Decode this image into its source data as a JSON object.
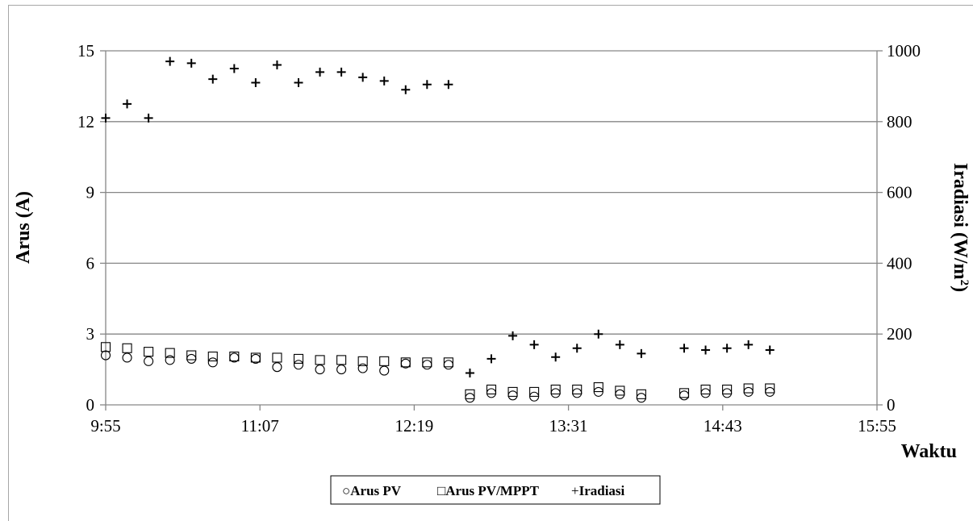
{
  "chart_data": {
    "type": "scatter",
    "x_axis": {
      "label": "Waktu",
      "min_minutes": 595,
      "max_minutes": 955,
      "tick_labels": [
        "9:55",
        "11:07",
        "12:19",
        "13:31",
        "14:43",
        "15:55"
      ]
    },
    "y_axis_left": {
      "label": "Arus (A)",
      "min": 0,
      "max": 15,
      "tick_labels": [
        "0",
        "3",
        "6",
        "9",
        "12",
        "15"
      ]
    },
    "y_axis_right": {
      "label_main": "Iradiasi (W/m",
      "label_sup": "2",
      "label_close": ")",
      "min": 0,
      "max": 1000,
      "tick_labels": [
        "0",
        "200",
        "400",
        "600",
        "800",
        "1000"
      ]
    },
    "grid": "horizontal",
    "legend": {
      "placement": "bottom",
      "entries": [
        {
          "marker": "○",
          "label": "Arus PV"
        },
        {
          "marker": "□",
          "label": "Arus PV/MPPT"
        },
        {
          "marker": "+",
          "label": "Iradiasi"
        }
      ]
    },
    "series": [
      {
        "name": "Arus PV",
        "axis": "left",
        "marker": "circle",
        "points": [
          [
            595,
            2.1
          ],
          [
            605,
            2.0
          ],
          [
            615,
            1.85
          ],
          [
            625,
            1.9
          ],
          [
            635,
            1.95
          ],
          [
            645,
            1.8
          ],
          [
            655,
            2.0
          ],
          [
            665,
            1.95
          ],
          [
            675,
            1.6
          ],
          [
            685,
            1.7
          ],
          [
            695,
            1.5
          ],
          [
            705,
            1.5
          ],
          [
            715,
            1.55
          ],
          [
            725,
            1.45
          ],
          [
            735,
            1.75
          ],
          [
            745,
            1.7
          ],
          [
            755,
            1.7
          ],
          [
            765,
            0.3
          ],
          [
            775,
            0.5
          ],
          [
            785,
            0.4
          ],
          [
            795,
            0.35
          ],
          [
            805,
            0.5
          ],
          [
            815,
            0.5
          ],
          [
            825,
            0.55
          ],
          [
            835,
            0.45
          ],
          [
            845,
            0.3
          ],
          [
            865,
            0.4
          ],
          [
            875,
            0.5
          ],
          [
            885,
            0.5
          ],
          [
            895,
            0.55
          ],
          [
            905,
            0.55
          ]
        ]
      },
      {
        "name": "Arus PV/MPPT",
        "axis": "left",
        "marker": "square",
        "points": [
          [
            595,
            2.45
          ],
          [
            605,
            2.4
          ],
          [
            615,
            2.25
          ],
          [
            625,
            2.2
          ],
          [
            635,
            2.1
          ],
          [
            645,
            2.05
          ],
          [
            655,
            2.05
          ],
          [
            665,
            2.0
          ],
          [
            675,
            2.0
          ],
          [
            685,
            1.95
          ],
          [
            695,
            1.9
          ],
          [
            705,
            1.9
          ],
          [
            715,
            1.85
          ],
          [
            725,
            1.85
          ],
          [
            735,
            1.8
          ],
          [
            745,
            1.8
          ],
          [
            755,
            1.8
          ],
          [
            765,
            0.45
          ],
          [
            775,
            0.65
          ],
          [
            785,
            0.55
          ],
          [
            795,
            0.55
          ],
          [
            805,
            0.65
          ],
          [
            815,
            0.65
          ],
          [
            825,
            0.75
          ],
          [
            835,
            0.6
          ],
          [
            845,
            0.45
          ],
          [
            865,
            0.5
          ],
          [
            875,
            0.65
          ],
          [
            885,
            0.65
          ],
          [
            895,
            0.7
          ],
          [
            905,
            0.7
          ]
        ]
      },
      {
        "name": "Iradiasi",
        "axis": "right",
        "marker": "plus",
        "points": [
          [
            595,
            810
          ],
          [
            605,
            850
          ],
          [
            615,
            810
          ],
          [
            625,
            970
          ],
          [
            635,
            965
          ],
          [
            645,
            920
          ],
          [
            655,
            950
          ],
          [
            665,
            910
          ],
          [
            675,
            960
          ],
          [
            685,
            910
          ],
          [
            695,
            940
          ],
          [
            705,
            940
          ],
          [
            715,
            925
          ],
          [
            725,
            915
          ],
          [
            735,
            890
          ],
          [
            745,
            905
          ],
          [
            755,
            905
          ],
          [
            765,
            90
          ],
          [
            775,
            130
          ],
          [
            785,
            195
          ],
          [
            795,
            170
          ],
          [
            805,
            135
          ],
          [
            815,
            160
          ],
          [
            825,
            200
          ],
          [
            835,
            170
          ],
          [
            845,
            145
          ],
          [
            865,
            160
          ],
          [
            875,
            155
          ],
          [
            885,
            160
          ],
          [
            895,
            170
          ],
          [
            905,
            155
          ]
        ]
      }
    ]
  }
}
